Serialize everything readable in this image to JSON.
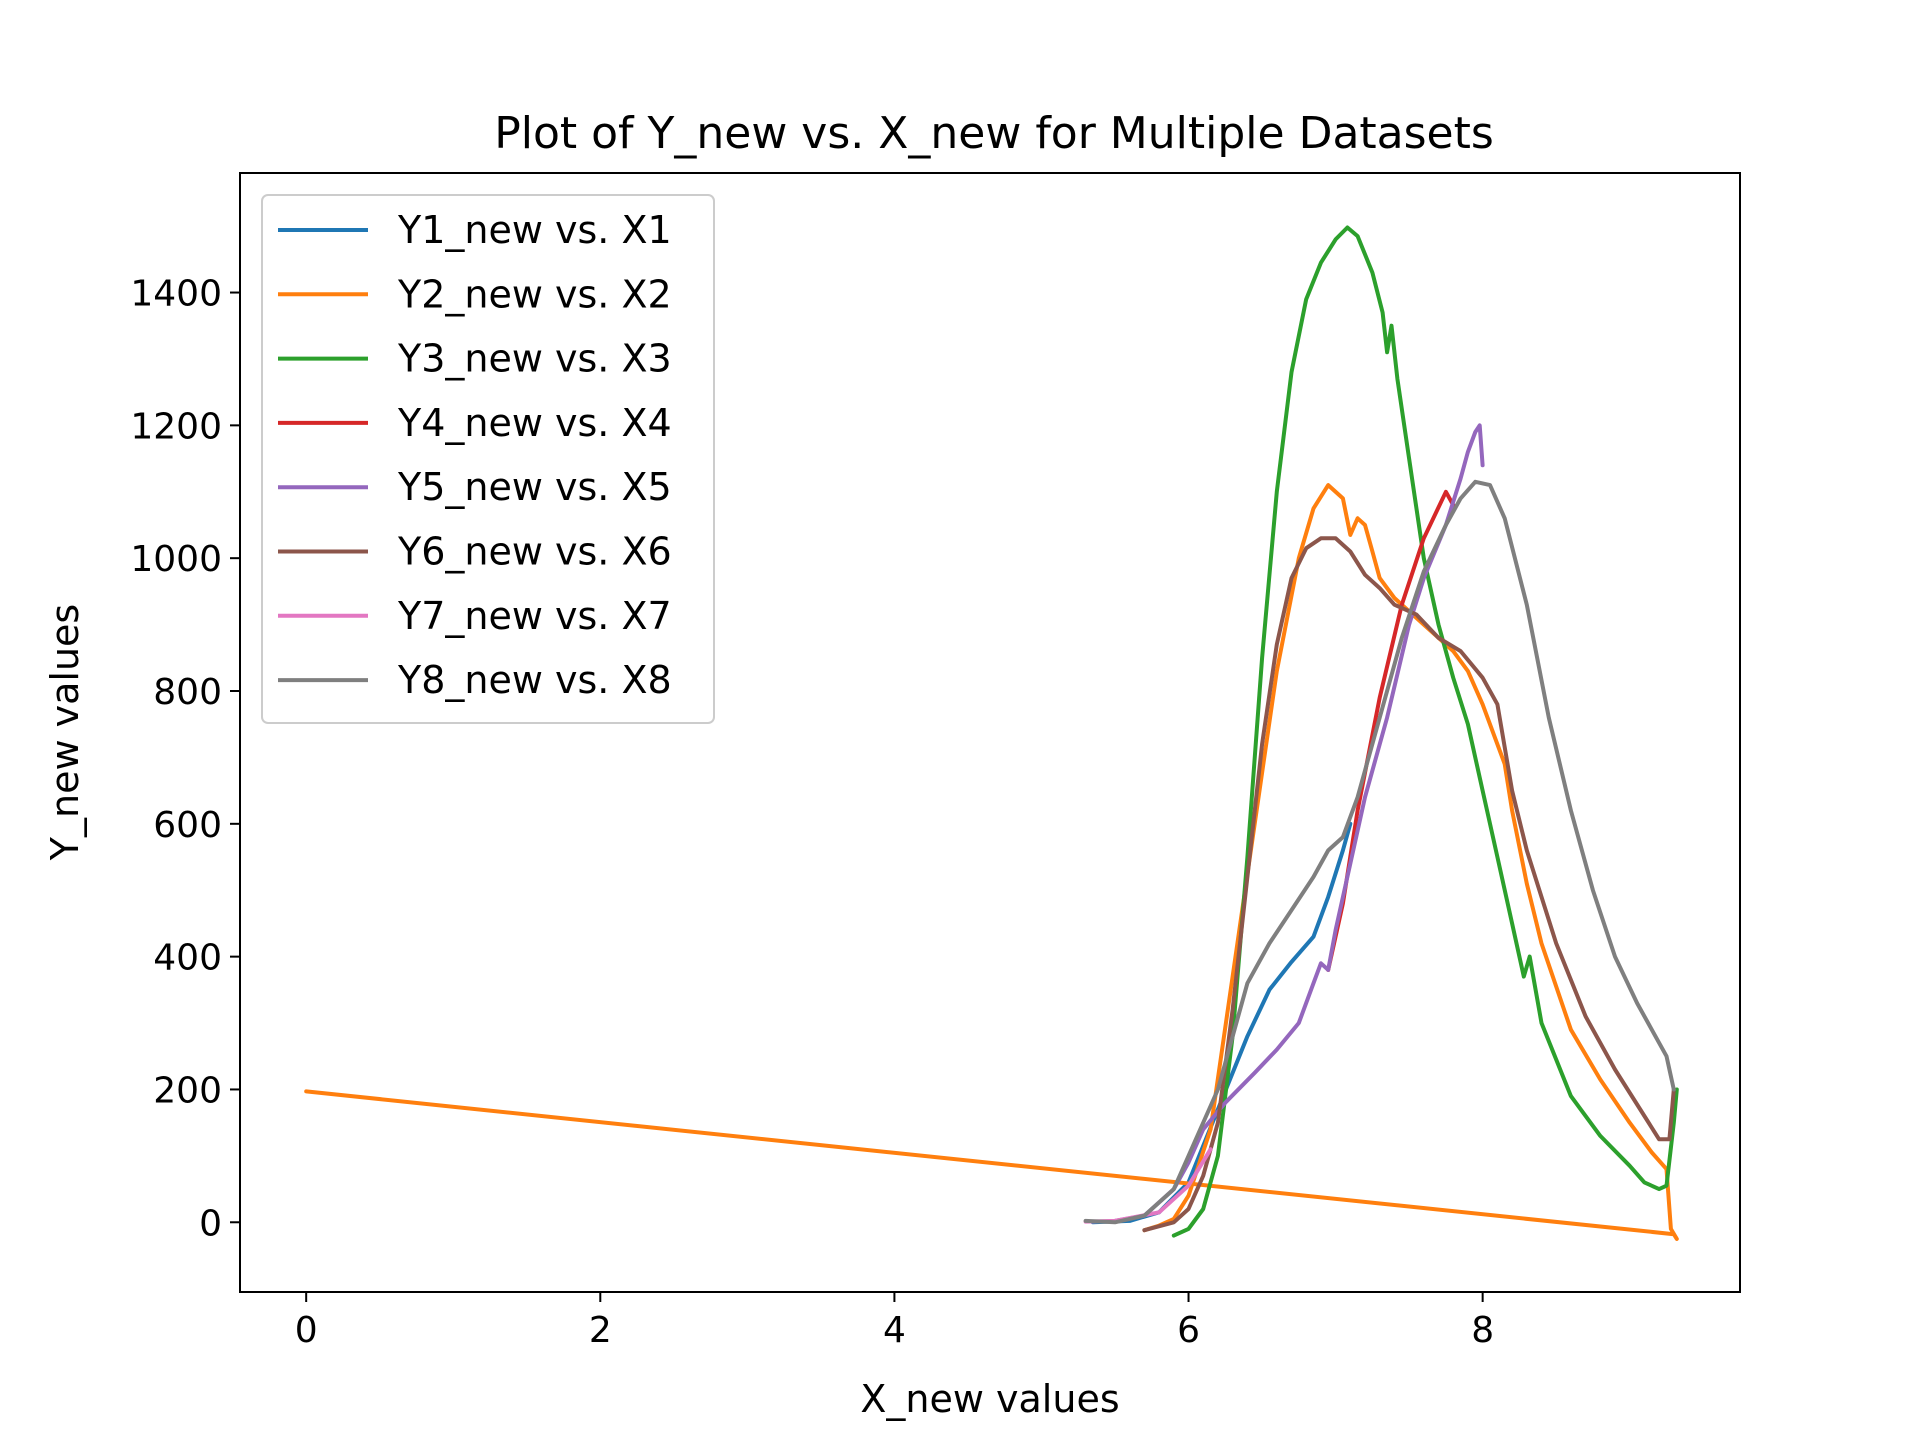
{
  "chart_data": {
    "type": "line",
    "title": "Plot of Y_new vs. X_new for Multiple Datasets",
    "xlabel": "X_new values",
    "ylabel": "Y_new values",
    "xlim": [
      -0.45,
      9.75
    ],
    "ylim": [
      -105,
      1580
    ],
    "xticks": [
      0,
      2,
      4,
      6,
      8
    ],
    "yticks": [
      0,
      200,
      400,
      600,
      800,
      1000,
      1200,
      1400
    ],
    "grid": false,
    "legend": "top-left",
    "series": [
      {
        "name": "Y1_new vs. X1",
        "color": "#1f77b4",
        "points": [
          [
            5.35,
            0
          ],
          [
            5.6,
            2
          ],
          [
            5.8,
            15
          ],
          [
            6.0,
            60
          ],
          [
            6.2,
            170
          ],
          [
            6.4,
            280
          ],
          [
            6.55,
            350
          ],
          [
            6.7,
            392
          ],
          [
            6.85,
            430
          ],
          [
            6.95,
            490
          ],
          [
            7.05,
            560
          ],
          [
            7.1,
            600
          ]
        ]
      },
      {
        "name": "Y2_new vs. X2",
        "color": "#ff7f0e",
        "points": [
          [
            0,
            197
          ],
          [
            9.3,
            -18
          ],
          [
            9.32,
            -25
          ],
          [
            9.28,
            -10
          ],
          [
            9.25,
            80
          ],
          [
            9.15,
            105
          ],
          [
            9.0,
            150
          ],
          [
            8.8,
            215
          ],
          [
            8.6,
            290
          ],
          [
            8.4,
            420
          ],
          [
            8.3,
            510
          ],
          [
            8.2,
            620
          ],
          [
            8.15,
            690
          ],
          [
            8.0,
            780
          ],
          [
            7.9,
            830
          ],
          [
            7.8,
            860
          ],
          [
            7.6,
            900
          ],
          [
            7.4,
            940
          ],
          [
            7.3,
            970
          ],
          [
            7.25,
            1010
          ],
          [
            7.2,
            1050
          ],
          [
            7.15,
            1060
          ],
          [
            7.1,
            1035
          ],
          [
            7.05,
            1090
          ],
          [
            6.95,
            1110
          ],
          [
            6.85,
            1075
          ],
          [
            6.75,
            1000
          ],
          [
            6.6,
            830
          ],
          [
            6.45,
            600
          ],
          [
            6.3,
            370
          ],
          [
            6.15,
            140
          ],
          [
            6.0,
            40
          ],
          [
            5.9,
            5
          ],
          [
            5.8,
            -5
          ],
          [
            5.7,
            -12
          ]
        ]
      },
      {
        "name": "Y3_new vs. X3",
        "color": "#2ca02c",
        "points": [
          [
            5.9,
            -20
          ],
          [
            6.0,
            -10
          ],
          [
            6.1,
            20
          ],
          [
            6.2,
            100
          ],
          [
            6.3,
            280
          ],
          [
            6.4,
            550
          ],
          [
            6.5,
            850
          ],
          [
            6.6,
            1100
          ],
          [
            6.7,
            1280
          ],
          [
            6.8,
            1390
          ],
          [
            6.9,
            1445
          ],
          [
            7.0,
            1480
          ],
          [
            7.08,
            1498
          ],
          [
            7.15,
            1485
          ],
          [
            7.25,
            1430
          ],
          [
            7.32,
            1370
          ],
          [
            7.35,
            1310
          ],
          [
            7.38,
            1350
          ],
          [
            7.42,
            1270
          ],
          [
            7.5,
            1150
          ],
          [
            7.6,
            1000
          ],
          [
            7.7,
            900
          ],
          [
            7.8,
            820
          ],
          [
            7.9,
            750
          ],
          [
            8.0,
            650
          ],
          [
            8.1,
            550
          ],
          [
            8.2,
            450
          ],
          [
            8.28,
            370
          ],
          [
            8.32,
            400
          ],
          [
            8.4,
            300
          ],
          [
            8.6,
            190
          ],
          [
            8.8,
            130
          ],
          [
            9.0,
            85
          ],
          [
            9.1,
            60
          ],
          [
            9.2,
            50
          ],
          [
            9.25,
            55
          ],
          [
            9.3,
            150
          ],
          [
            9.32,
            200
          ]
        ]
      },
      {
        "name": "Y4_new vs. X4",
        "color": "#d62728",
        "points": [
          [
            6.95,
            380
          ],
          [
            7.05,
            480
          ],
          [
            7.15,
            620
          ],
          [
            7.3,
            790
          ],
          [
            7.45,
            930
          ],
          [
            7.6,
            1030
          ],
          [
            7.75,
            1100
          ],
          [
            7.8,
            1080
          ]
        ]
      },
      {
        "name": "Y5_new vs. X5",
        "color": "#9467bd",
        "points": [
          [
            5.5,
            2
          ],
          [
            5.7,
            10
          ],
          [
            5.9,
            50
          ],
          [
            6.0,
            90
          ],
          [
            6.1,
            140
          ],
          [
            6.25,
            180
          ],
          [
            6.45,
            225
          ],
          [
            6.6,
            260
          ],
          [
            6.75,
            300
          ],
          [
            6.85,
            360
          ],
          [
            6.9,
            390
          ],
          [
            6.95,
            380
          ],
          [
            7.0,
            440
          ],
          [
            7.1,
            540
          ],
          [
            7.2,
            640
          ],
          [
            7.35,
            760
          ],
          [
            7.5,
            900
          ],
          [
            7.6,
            970
          ],
          [
            7.75,
            1050
          ],
          [
            7.85,
            1120
          ],
          [
            7.9,
            1160
          ],
          [
            7.95,
            1190
          ],
          [
            7.98,
            1200
          ],
          [
            8.0,
            1140
          ]
        ]
      },
      {
        "name": "Y6_new vs. X6",
        "color": "#8c564b",
        "points": [
          [
            5.7,
            -12
          ],
          [
            5.9,
            0
          ],
          [
            6.0,
            20
          ],
          [
            6.1,
            70
          ],
          [
            6.2,
            150
          ],
          [
            6.3,
            320
          ],
          [
            6.4,
            520
          ],
          [
            6.5,
            720
          ],
          [
            6.6,
            870
          ],
          [
            6.7,
            970
          ],
          [
            6.8,
            1015
          ],
          [
            6.9,
            1030
          ],
          [
            7.0,
            1030
          ],
          [
            7.1,
            1010
          ],
          [
            7.2,
            975
          ],
          [
            7.3,
            955
          ],
          [
            7.4,
            930
          ],
          [
            7.55,
            915
          ],
          [
            7.7,
            880
          ],
          [
            7.85,
            860
          ],
          [
            8.0,
            820
          ],
          [
            8.1,
            780
          ],
          [
            8.2,
            650
          ],
          [
            8.3,
            560
          ],
          [
            8.5,
            420
          ],
          [
            8.7,
            310
          ],
          [
            8.9,
            230
          ],
          [
            9.1,
            160
          ],
          [
            9.2,
            125
          ],
          [
            9.27,
            125
          ],
          [
            9.3,
            200
          ]
        ]
      },
      {
        "name": "Y7_new vs. X7",
        "color": "#e377c2",
        "points": [
          [
            5.3,
            1
          ],
          [
            5.5,
            2
          ],
          [
            5.8,
            15
          ],
          [
            6.0,
            55
          ],
          [
            6.15,
            110
          ]
        ]
      },
      {
        "name": "Y8_new vs. X8",
        "color": "#7f7f7f",
        "points": [
          [
            5.3,
            2
          ],
          [
            5.5,
            0
          ],
          [
            5.7,
            10
          ],
          [
            5.9,
            50
          ],
          [
            6.0,
            100
          ],
          [
            6.2,
            200
          ],
          [
            6.4,
            360
          ],
          [
            6.55,
            420
          ],
          [
            6.7,
            470
          ],
          [
            6.85,
            520
          ],
          [
            6.95,
            560
          ],
          [
            7.05,
            580
          ],
          [
            7.15,
            640
          ],
          [
            7.3,
            760
          ],
          [
            7.45,
            880
          ],
          [
            7.6,
            980
          ],
          [
            7.75,
            1050
          ],
          [
            7.85,
            1090
          ],
          [
            7.95,
            1115
          ],
          [
            8.05,
            1110
          ],
          [
            8.15,
            1060
          ],
          [
            8.3,
            930
          ],
          [
            8.45,
            760
          ],
          [
            8.6,
            620
          ],
          [
            8.75,
            500
          ],
          [
            8.9,
            400
          ],
          [
            9.05,
            330
          ],
          [
            9.15,
            290
          ],
          [
            9.25,
            250
          ],
          [
            9.3,
            200
          ]
        ]
      }
    ]
  }
}
